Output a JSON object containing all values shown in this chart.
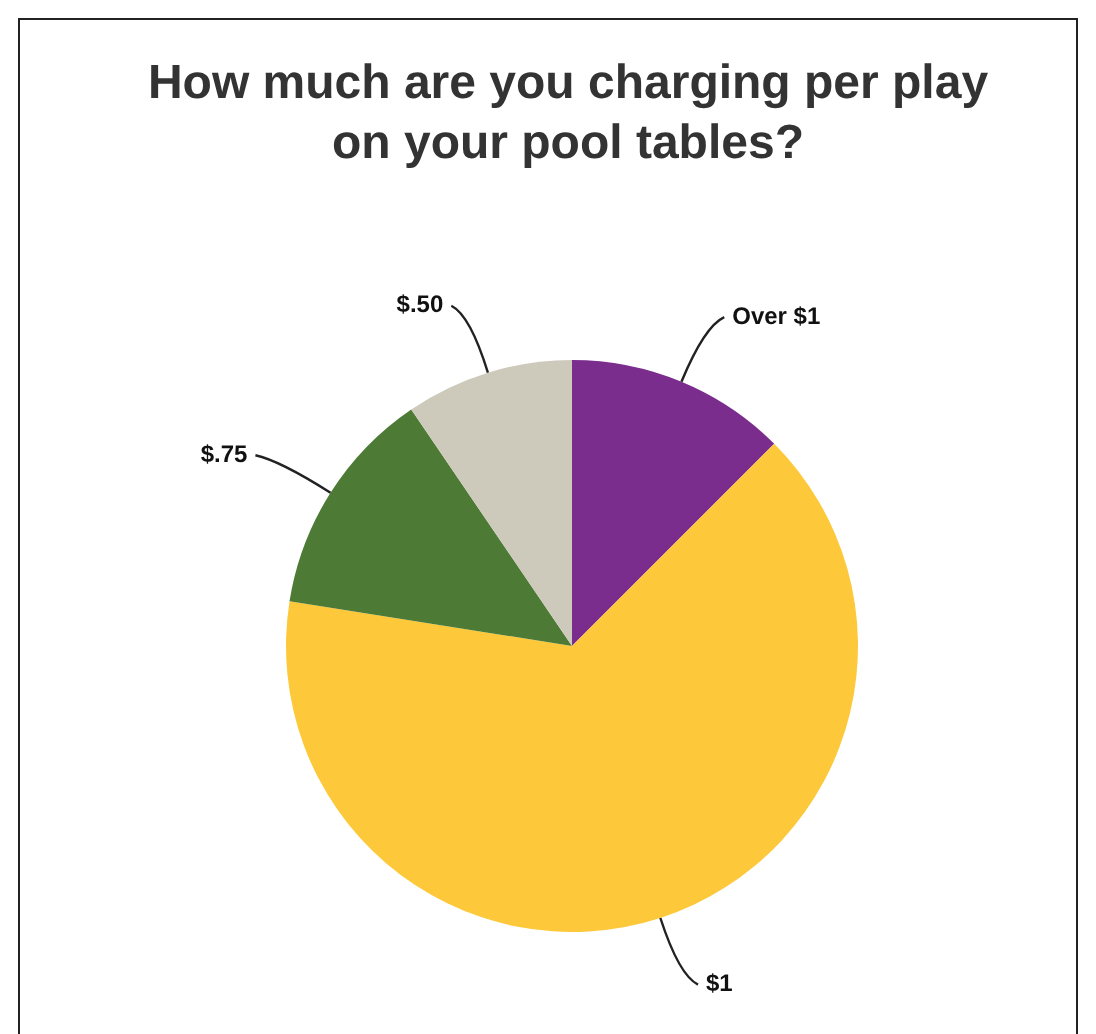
{
  "chart_data": {
    "type": "pie",
    "title": "How much are you charging per play on your pool tables?",
    "categories": [
      "Over $1",
      "$1",
      "$.75",
      "$.50"
    ],
    "values": [
      12.5,
      65,
      13,
      9.5
    ],
    "colors": [
      "#7b2d8e",
      "#fdc93a",
      "#4d7b35",
      "#cdc9bb"
    ]
  }
}
